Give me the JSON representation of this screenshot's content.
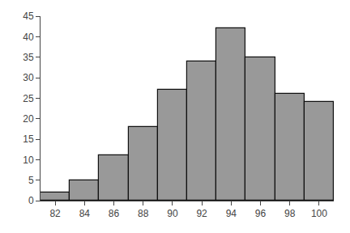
{
  "chart_data": {
    "type": "bar",
    "x": [
      82,
      84,
      86,
      88,
      90,
      92,
      94,
      96,
      98,
      100
    ],
    "values": [
      2,
      5,
      11,
      18,
      27,
      34,
      42,
      35,
      26,
      24
    ],
    "color": "#999999",
    "xlim": [
      81,
      101
    ],
    "xticks": [
      82,
      84,
      86,
      88,
      90,
      92,
      94,
      96,
      98,
      100
    ],
    "ylim": [
      0,
      45
    ],
    "yticks": [
      0,
      5,
      10,
      15,
      20,
      25,
      30,
      35,
      40,
      45
    ],
    "grid": false
  }
}
